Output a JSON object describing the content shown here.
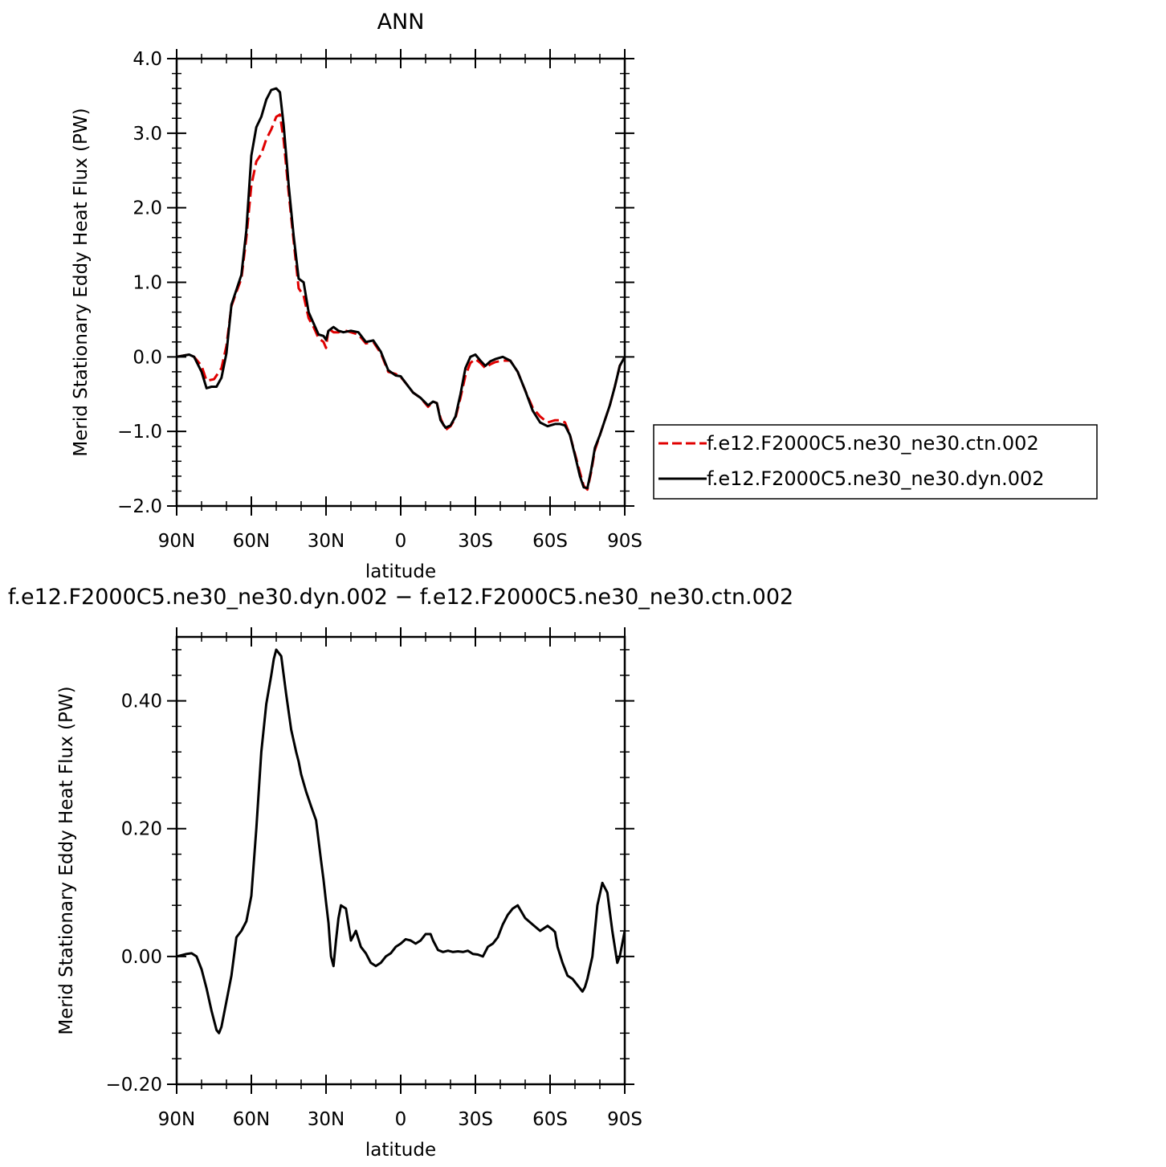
{
  "chart_data": [
    {
      "type": "line",
      "title": "ANN",
      "xlabel": "latitude",
      "ylabel": "Merid Stationary Eddy Heat Flux (PW)",
      "xlim": [
        90,
        -90
      ],
      "ylim": [
        -2.0,
        4.0
      ],
      "x_tick_values": [
        90,
        60,
        30,
        0,
        -30,
        -60,
        -90
      ],
      "x_tick_labels": [
        "90N",
        "60N",
        "30N",
        "0",
        "30S",
        "60S",
        "90S"
      ],
      "y_tick_values": [
        4.0,
        3.0,
        2.0,
        1.0,
        0.0,
        -1.0,
        -2.0
      ],
      "y_tick_labels": [
        "4.0",
        "3.0",
        "2.0",
        "1.0",
        "0.0",
        "−1.0",
        "−2.0"
      ],
      "legend_position": "right",
      "series": [
        {
          "name": "f.e12.F2000C5.ne30_ne30.ctn.002",
          "color": "#e00000",
          "dash": true,
          "x": [
            90,
            85,
            83,
            80,
            78,
            75,
            72,
            70,
            68,
            66,
            64,
            62,
            60,
            58,
            56,
            54,
            52,
            50,
            48.5,
            47,
            45,
            43,
            41,
            39,
            37,
            35,
            33,
            31,
            30,
            29,
            27,
            25,
            23,
            20,
            17,
            14,
            11,
            8,
            5,
            2,
            0,
            -2,
            -5,
            -8,
            -11,
            -13,
            -14.5,
            -16,
            -18,
            -20,
            -22,
            -24,
            -26,
            -28,
            -30,
            -32,
            -34,
            -36,
            -38,
            -41,
            -44,
            -47,
            -50,
            -53,
            -56,
            -59,
            -62,
            -64,
            -66,
            -68,
            -70,
            -72,
            -73.5,
            -75,
            -76.5,
            -78,
            -80,
            -82,
            -84,
            -86,
            -88,
            -90
          ],
          "y": [
            0.0,
            0.03,
            0.0,
            -0.12,
            -0.32,
            -0.3,
            -0.15,
            0.15,
            0.68,
            0.87,
            1.05,
            1.6,
            2.3,
            2.62,
            2.72,
            2.92,
            3.05,
            3.22,
            3.25,
            2.9,
            2.2,
            1.55,
            0.92,
            0.82,
            0.52,
            0.4,
            0.25,
            0.2,
            0.12,
            0.38,
            0.33,
            0.33,
            0.36,
            0.33,
            0.3,
            0.18,
            0.2,
            0.05,
            -0.2,
            -0.23,
            -0.27,
            -0.35,
            -0.48,
            -0.55,
            -0.67,
            -0.6,
            -0.62,
            -0.82,
            -0.98,
            -0.93,
            -0.82,
            -0.55,
            -0.25,
            -0.08,
            -0.03,
            -0.08,
            -0.15,
            -0.1,
            -0.07,
            -0.05,
            -0.05,
            -0.2,
            -0.45,
            -0.68,
            -0.8,
            -0.88,
            -0.85,
            -0.85,
            -0.88,
            -1.05,
            -1.3,
            -1.55,
            -1.73,
            -1.78,
            -1.55,
            -1.25,
            -1.05,
            -0.85,
            -0.65,
            -0.4,
            -0.12,
            0.0
          ]
        },
        {
          "name": "f.e12.F2000C5.ne30_ne30.dyn.002",
          "color": "#000000",
          "dash": false,
          "x": [
            90,
            85,
            83,
            80,
            78,
            76,
            74,
            72,
            70,
            68,
            66,
            64,
            62,
            60,
            58,
            56,
            54,
            52,
            50,
            48.5,
            47,
            45,
            43,
            41,
            39,
            37,
            35,
            33,
            31,
            30,
            29,
            27,
            25,
            23,
            20,
            17,
            14,
            11,
            8,
            5,
            2,
            0,
            -2,
            -5,
            -8,
            -11,
            -13,
            -14.5,
            -16,
            -18,
            -20,
            -22,
            -24,
            -26,
            -28,
            -30,
            -32,
            -34,
            -36,
            -38,
            -41,
            -44,
            -47,
            -50,
            -53,
            -56,
            -59,
            -62,
            -64,
            -66,
            -68,
            -70,
            -72,
            -73.5,
            -75,
            -76.5,
            -78,
            -80,
            -82,
            -84,
            -86,
            -88,
            -90
          ],
          "y": [
            0.0,
            0.03,
            0.0,
            -0.2,
            -0.42,
            -0.4,
            -0.4,
            -0.28,
            0.05,
            0.7,
            0.9,
            1.1,
            1.7,
            2.7,
            3.08,
            3.22,
            3.45,
            3.58,
            3.6,
            3.55,
            3.1,
            2.3,
            1.62,
            1.05,
            1.0,
            0.6,
            0.45,
            0.3,
            0.28,
            0.23,
            0.35,
            0.4,
            0.35,
            0.33,
            0.35,
            0.33,
            0.2,
            0.22,
            0.07,
            -0.18,
            -0.25,
            -0.26,
            -0.35,
            -0.48,
            -0.55,
            -0.65,
            -0.6,
            -0.62,
            -0.85,
            -0.95,
            -0.92,
            -0.8,
            -0.5,
            -0.15,
            0.0,
            0.03,
            -0.05,
            -0.12,
            -0.06,
            -0.03,
            0.0,
            -0.05,
            -0.2,
            -0.45,
            -0.72,
            -0.88,
            -0.93,
            -0.9,
            -0.9,
            -0.92,
            -1.05,
            -1.32,
            -1.6,
            -1.75,
            -1.76,
            -1.52,
            -1.22,
            -1.05,
            -0.85,
            -0.65,
            -0.4,
            -0.12,
            0.0
          ]
        }
      ]
    },
    {
      "type": "line",
      "title": "f.e12.F2000C5.ne30_ne30.dyn.002 − f.e12.F2000C5.ne30_ne30.ctn.002",
      "xlabel": "latitude",
      "ylabel": "Merid Stationary Eddy Heat Flux (PW)",
      "xlim": [
        90,
        -90
      ],
      "ylim": [
        -0.2,
        0.5
      ],
      "x_tick_values": [
        90,
        60,
        30,
        0,
        -30,
        -60,
        -90
      ],
      "x_tick_labels": [
        "90N",
        "60N",
        "30N",
        "0",
        "30S",
        "60S",
        "90S"
      ],
      "y_tick_values": [
        0.4,
        0.2,
        0.0,
        -0.2
      ],
      "y_tick_labels": [
        "0.40",
        "0.20",
        "0.00",
        "−0.20"
      ],
      "series": [
        {
          "color": "#000000",
          "dash": false,
          "x": [
            90,
            86,
            84,
            82,
            80,
            78,
            76,
            74,
            73,
            72,
            70,
            68,
            66,
            64,
            62,
            60,
            58,
            56,
            54,
            52,
            51,
            50,
            48,
            46,
            44,
            42,
            41,
            40,
            38,
            36,
            34,
            32,
            31,
            30,
            29,
            28.5,
            28,
            27,
            26,
            25,
            24,
            22,
            20,
            18,
            16,
            14,
            12,
            10,
            8,
            6,
            4,
            2,
            0,
            -2,
            -4,
            -6,
            -8,
            -10,
            -12,
            -13,
            -15,
            -17,
            -19,
            -21,
            -23,
            -25,
            -27,
            -29,
            -31,
            -33,
            -35,
            -37,
            -39,
            -41,
            -43,
            -45,
            -47,
            -50,
            -53,
            -56,
            -59,
            -61,
            -62,
            -63,
            -65,
            -67,
            -69,
            -70,
            -71,
            -72,
            -73,
            -74,
            -75,
            -77,
            -79,
            -81,
            -83,
            -85,
            -87,
            -88,
            -90
          ],
          "y": [
            0.0,
            0.004,
            0.005,
            0.0,
            -0.02,
            -0.05,
            -0.085,
            -0.115,
            -0.12,
            -0.11,
            -0.07,
            -0.03,
            0.03,
            0.04,
            0.055,
            0.095,
            0.2,
            0.32,
            0.395,
            0.44,
            0.465,
            0.48,
            0.47,
            0.41,
            0.355,
            0.32,
            0.305,
            0.285,
            0.258,
            0.235,
            0.213,
            0.15,
            0.12,
            0.085,
            0.052,
            0.026,
            0.0,
            -0.015,
            0.025,
            0.06,
            0.08,
            0.075,
            0.025,
            0.04,
            0.015,
            0.005,
            -0.01,
            -0.015,
            -0.01,
            0.0,
            0.005,
            0.015,
            0.02,
            0.027,
            0.025,
            0.02,
            0.025,
            0.035,
            0.035,
            0.025,
            0.01,
            0.007,
            0.009,
            0.007,
            0.008,
            0.007,
            0.009,
            0.004,
            0.003,
            0.0,
            0.015,
            0.02,
            0.03,
            0.05,
            0.065,
            0.075,
            0.08,
            0.06,
            0.05,
            0.04,
            0.048,
            0.042,
            0.038,
            0.015,
            -0.01,
            -0.03,
            -0.035,
            -0.04,
            -0.045,
            -0.05,
            -0.055,
            -0.048,
            -0.035,
            0.0,
            0.08,
            0.115,
            0.1,
            0.04,
            -0.01,
            0.0,
            0.04
          ]
        }
      ]
    }
  ]
}
